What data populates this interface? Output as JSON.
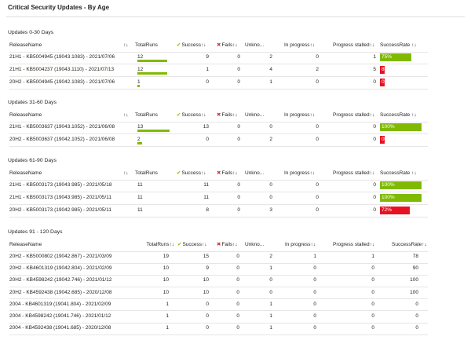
{
  "header": {
    "title": "Critical Security Updates - By Age"
  },
  "sections": [
    {
      "title": "Updates 0-30 Days",
      "release_sort": "↑↓",
      "headers": [
        "ReleaseName",
        "TotalRuns",
        "Success↑↓",
        "Fails↑↓",
        "Unkno...",
        "In progress↑↓",
        "Progress stalled↑↓",
        "SuccessRate ↑↓"
      ],
      "runs_bar_lim": [
        0,
        14
      ],
      "runs_bar_color": "#7fba00",
      "rows": [
        [
          "21H1 - KB5004945 (19043.1083) - 2021/07/06",
          12,
          9,
          0,
          2,
          0,
          1,
          {
            "value": 75,
            "label": "75%",
            "color": "#7fba00"
          }
        ],
        [
          "21H1 - KB5004237 (19043.1110) - 2021/07/13",
          12,
          1,
          0,
          4,
          2,
          5,
          {
            "value": 8,
            "label": "8%",
            "color": "#e81123"
          }
        ],
        [
          "20H2 - KB5004945 (19042.1083) - 2021/07/06",
          1,
          0,
          0,
          1,
          0,
          0,
          {
            "value": 0,
            "label": "0%",
            "color": "#e81123"
          }
        ]
      ]
    },
    {
      "title": "Updates 31-60 Days",
      "release_sort": "↑↓",
      "headers": [
        "ReleaseName",
        "TotalRuns",
        "Success↑↓",
        "Fails↑↓",
        "Unkno...",
        "In progress↑↓",
        "Progress stalled↑↓",
        "SuccessRate ↑↓"
      ],
      "runs_bar_lim": [
        0,
        14
      ],
      "runs_bar_color": "#7fba00",
      "rows": [
        [
          "21H1 - KB5003637 (19043.1052) - 2021/06/08",
          13,
          13,
          0,
          0,
          0,
          0,
          {
            "value": 100,
            "label": "100%",
            "color": "#7fba00"
          }
        ],
        [
          "20H2 - KB5003637 (19042.1052) - 2021/06/08",
          2,
          0,
          0,
          2,
          0,
          0,
          {
            "value": 0,
            "label": "0%",
            "color": "#e81123"
          }
        ]
      ]
    },
    {
      "title": "Updates 61-90 Days",
      "release_sort": "↑↓",
      "headers": [
        "ReleaseName",
        "TotalRuns",
        "Success↑↓",
        "Fails↑↓",
        "Unkno...",
        "In progress↑↓",
        "Progress stalled↑↓",
        "SuccessRate ↑↓"
      ],
      "rows": [
        [
          "21H1 - KB5003173 (19043.985) - 2021/05/18",
          11,
          11,
          0,
          0,
          0,
          0,
          {
            "value": 100,
            "label": "100%",
            "color": "#7fba00"
          }
        ],
        [
          "21H1 - KB5003173 (19043.985) - 2021/05/11",
          11,
          11,
          0,
          0,
          0,
          0,
          {
            "value": 100,
            "label": "100%",
            "color": "#7fba00"
          }
        ],
        [
          "20H2 - KB5003173 (19042.985) - 2021/05/11",
          11,
          8,
          0,
          3,
          0,
          0,
          {
            "value": 72,
            "label": "72%",
            "color": "#e81123"
          }
        ]
      ]
    },
    {
      "title": "Updates 91 - 120 Days",
      "headers": [
        "ReleaseName",
        "TotalRuns↑↓",
        "Success↑↓",
        "Fails↑↓",
        "Unkno...",
        "In progress↑↓",
        "Progress stalled↑↓",
        "SuccessRate↑↓"
      ],
      "rows": [
        [
          "20H2 - KB5000802 (19042.867) - 2021/03/09",
          19,
          15,
          0,
          2,
          1,
          1,
          78
        ],
        [
          "20H2 - KB4601319 (19042.804) - 2021/02/09",
          10,
          9,
          0,
          1,
          0,
          0,
          90
        ],
        [
          "20H2 - KB4598242 (19042.746) - 2021/01/12",
          10,
          10,
          0,
          0,
          0,
          0,
          100
        ],
        [
          "20H2 - KB4592438 (19042.685) - 2020/12/08",
          10,
          10,
          0,
          0,
          0,
          0,
          100
        ],
        [
          "2004 - KB4601319 (19041.804) - 2021/02/09",
          1,
          0,
          0,
          1,
          0,
          0,
          0
        ],
        [
          "2004 - KB4598242 (19041.746) - 2021/01/12",
          1,
          0,
          0,
          1,
          0,
          0,
          0
        ],
        [
          "2004 - KB4592438 (19041.685) - 2020/12/08",
          1,
          0,
          0,
          1,
          0,
          0,
          0
        ]
      ]
    }
  ]
}
